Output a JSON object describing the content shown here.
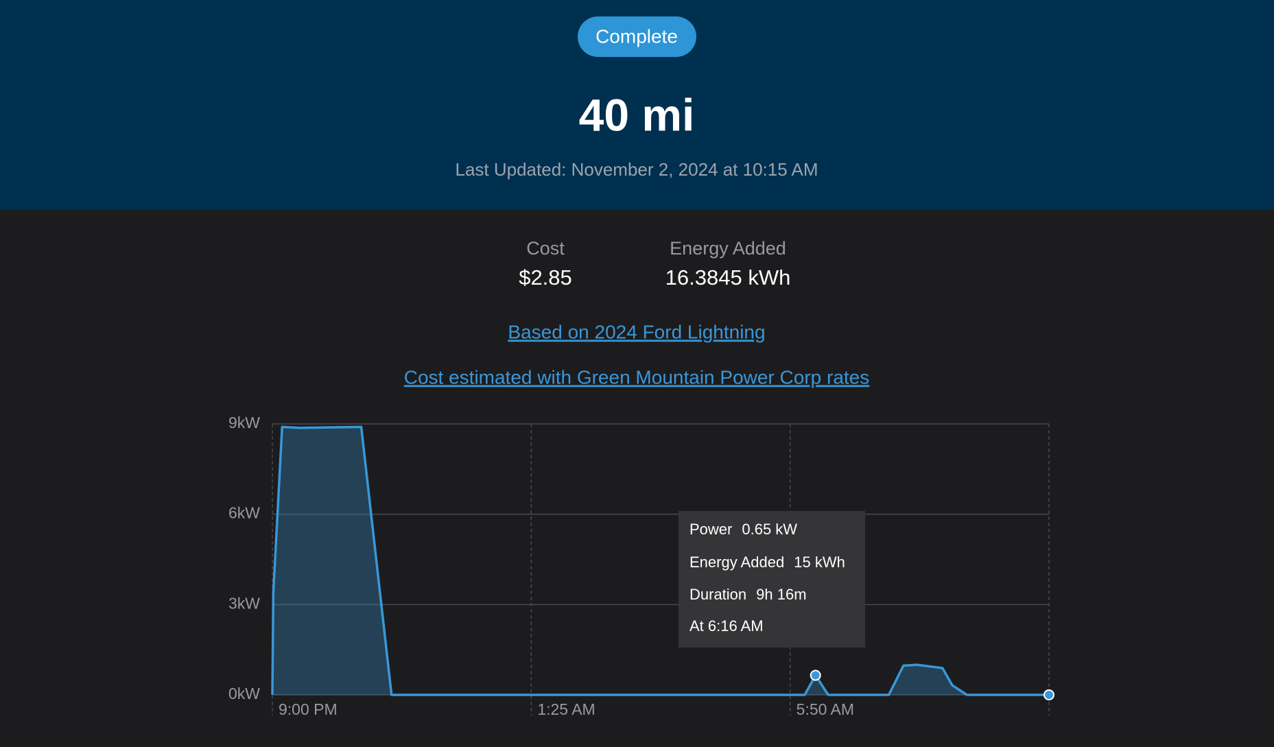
{
  "header": {
    "status": "Complete",
    "range": "40 mi",
    "last_updated": "Last Updated: November 2, 2024 at 10:15 AM"
  },
  "stats": [
    {
      "label": "Cost",
      "value": "$2.85"
    },
    {
      "label": "Energy Added",
      "value": "16.3845 kWh"
    }
  ],
  "links": [
    "Based on 2024 Ford Lightning",
    "Cost estimated with Green Mountain Power Corp rates"
  ],
  "tooltip": {
    "rows": [
      [
        "Power",
        "0.65 kW"
      ],
      [
        "Energy Added",
        "15 kWh"
      ],
      [
        "Duration",
        "9h 16m"
      ],
      [
        "At 6:16 AM"
      ]
    ]
  },
  "chart_data": {
    "type": "line",
    "x": [
      "9:00 PM",
      "9:01 PM",
      "9:10 PM",
      "9:28 PM",
      "10:31 PM",
      "11:02 PM",
      "6:05 AM",
      "6:16 AM",
      "6:29 AM",
      "7:31 AM",
      "7:46 AM",
      "8:00 AM",
      "8:26 AM",
      "8:36 AM",
      "8:51 AM",
      "10:15 AM"
    ],
    "values": [
      0,
      3.4,
      8.9,
      8.87,
      8.9,
      0,
      0,
      0.65,
      0,
      0,
      0.97,
      1.0,
      0.89,
      0.32,
      0,
      0
    ],
    "color": "#3a97d8",
    "xlim": [
      "9:00 PM",
      "10:15 AM"
    ],
    "xticks": [
      "9:00 PM",
      "1:25 AM",
      "5:50 AM"
    ],
    "ylim": [
      0,
      9
    ],
    "yticks": [
      {
        "value": 0,
        "label": "0kW"
      },
      {
        "value": 3,
        "label": "3kW"
      },
      {
        "value": 6,
        "label": "6kW"
      },
      {
        "value": 9,
        "label": "9kW"
      }
    ],
    "grid": true
  }
}
